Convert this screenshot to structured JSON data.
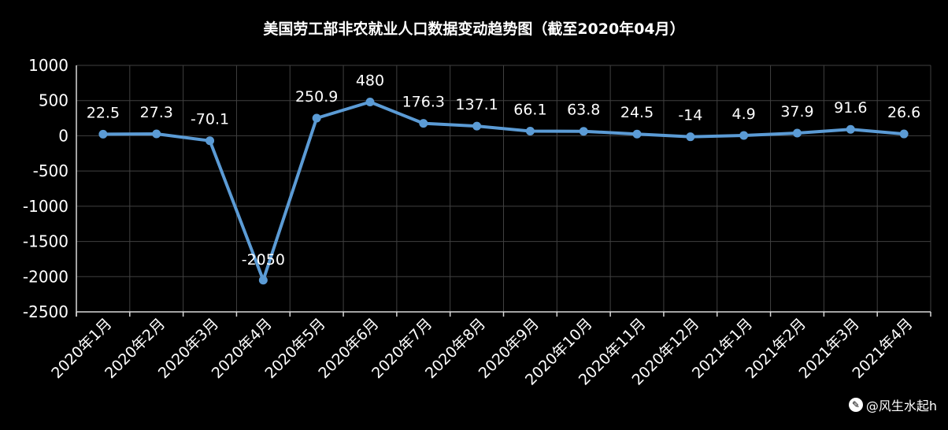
{
  "chart_data": {
    "type": "line",
    "title": "美国劳工部非农就业人口数据变动趋势图（截至2020年04月）",
    "categories": [
      "2020年1月",
      "2020年2月",
      "2020年3月",
      "2020年4月",
      "2020年5月",
      "2020年6月",
      "2020年7月",
      "2020年8月",
      "2020年9月",
      "2020年10月",
      "2020年11月",
      "2020年12月",
      "2021年1月",
      "2021年2月",
      "2021年3月",
      "2021年4月"
    ],
    "series": [
      {
        "values": [
          22.5,
          27.3,
          -70.1,
          -2050,
          250.9,
          480,
          176.3,
          137.1,
          66.1,
          63.8,
          24.5,
          -14,
          4.9,
          37.9,
          91.6,
          26.6
        ],
        "labels": [
          "22.5",
          "27.3",
          "-70.1",
          "-2050",
          "250.9",
          "480",
          "176.3",
          "137.1",
          "66.1",
          "63.8",
          "24.5",
          "-14",
          "4.9",
          "37.9",
          "91.6",
          "26.6"
        ]
      }
    ],
    "ylim": [
      -2500,
      1000
    ],
    "yticks": [
      1000,
      500,
      0,
      -500,
      -1000,
      -1500,
      -2000,
      -2500
    ],
    "grid": true,
    "colors": {
      "line": "#5B9BD5",
      "grid": "#404040",
      "text": "#ffffff",
      "background": "#000000"
    }
  },
  "watermark": {
    "icon": "feather-logo-icon",
    "text": "@风生水起h"
  }
}
